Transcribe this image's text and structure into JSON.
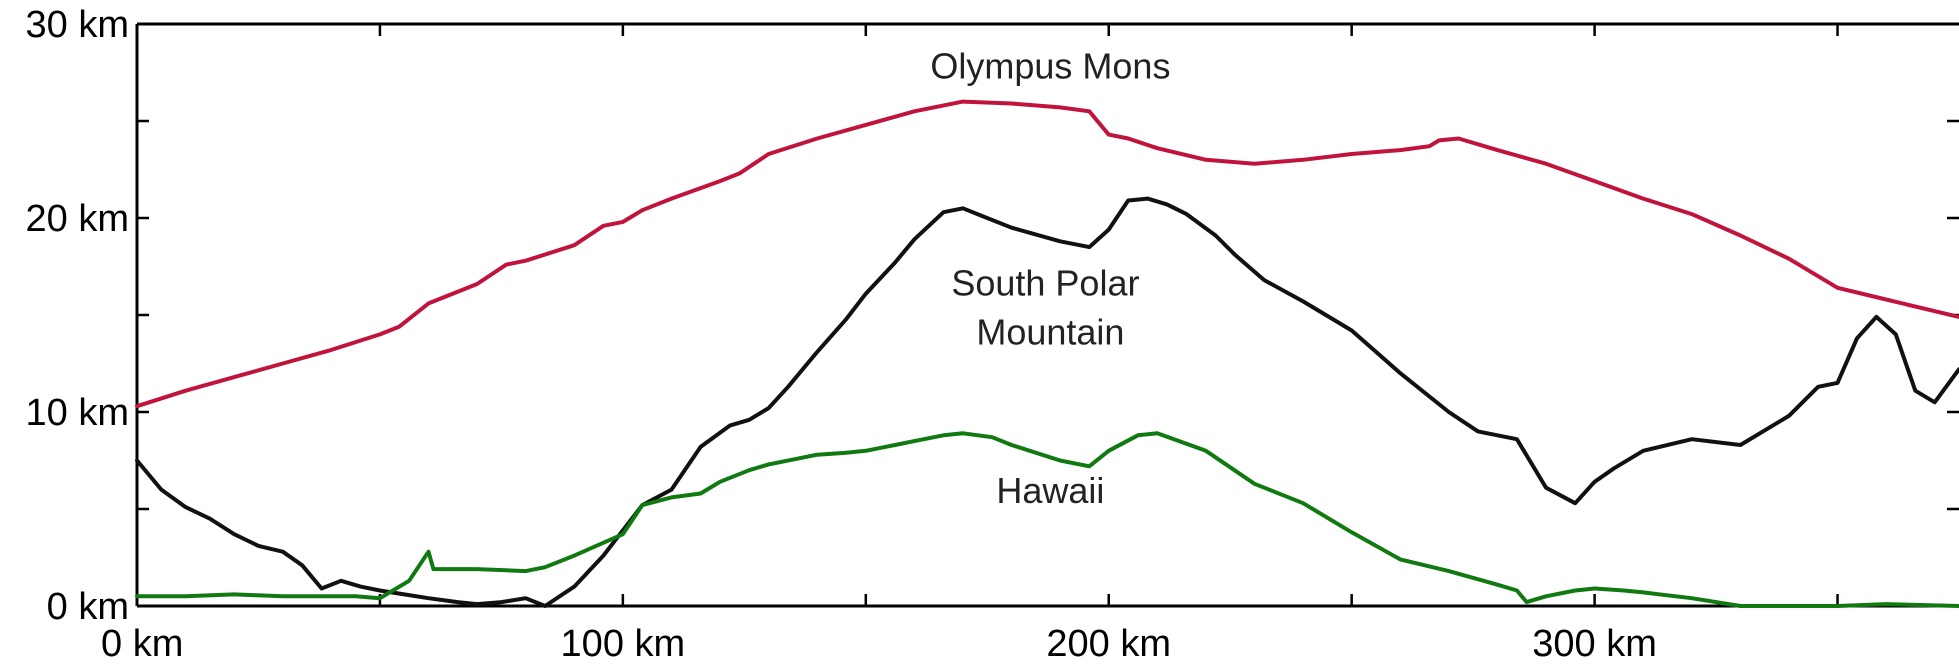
{
  "chart_data": {
    "type": "line",
    "title": "",
    "xlabel": "",
    "ylabel": "",
    "xlim": [
      0,
      375
    ],
    "ylim": [
      0,
      30
    ],
    "grid": false,
    "legend": "none",
    "x_ticks": [
      {
        "value": 0,
        "label": "0 km"
      },
      {
        "value": 100,
        "label": "100 km"
      },
      {
        "value": 200,
        "label": "200 km"
      },
      {
        "value": 300,
        "label": "300 km"
      }
    ],
    "x_minor_ticks": [
      50,
      150,
      250,
      350
    ],
    "y_ticks": [
      {
        "value": 0,
        "label": "0 km"
      },
      {
        "value": 10,
        "label": "10 km"
      },
      {
        "value": 20,
        "label": "20 km"
      },
      {
        "value": 30,
        "label": "30 km"
      }
    ],
    "y_minor_ticks": [
      5,
      15,
      25
    ],
    "series": [
      {
        "key": "olympus",
        "name": "Olympus Mons",
        "color": "#c0143c",
        "label_at": {
          "x": 188,
          "y": 27.2
        },
        "label_lines": [
          "Olympus Mons"
        ],
        "x": [
          0,
          10,
          20,
          30,
          40,
          50,
          54,
          60,
          70,
          76,
          80,
          90,
          96,
          100,
          104,
          110,
          120,
          124,
          130,
          140,
          150,
          160,
          170,
          180,
          190,
          196,
          200,
          204,
          210,
          220,
          230,
          240,
          250,
          260,
          266,
          268,
          272,
          280,
          290,
          300,
          310,
          320,
          330,
          340,
          350,
          360,
          375
        ],
        "y": [
          10.3,
          11.1,
          11.8,
          12.5,
          13.2,
          14.0,
          14.4,
          15.6,
          16.6,
          17.6,
          17.8,
          18.6,
          19.6,
          19.8,
          20.4,
          21.0,
          21.9,
          22.3,
          23.3,
          24.1,
          24.8,
          25.5,
          26.0,
          25.9,
          25.7,
          25.5,
          24.3,
          24.1,
          23.6,
          23.0,
          22.8,
          23.0,
          23.3,
          23.5,
          23.7,
          24.0,
          24.1,
          23.5,
          22.8,
          21.9,
          21.0,
          20.2,
          19.1,
          17.9,
          16.4,
          15.8,
          14.9
        ]
      },
      {
        "key": "south-polar",
        "name": "South Polar Mountain",
        "color": "#111111",
        "label_at": {
          "x": 188,
          "y": 16.0
        },
        "label_lines": [
          "South Polar",
          "Mountain"
        ],
        "x": [
          0,
          5,
          10,
          15,
          20,
          25,
          30,
          34,
          38,
          42,
          46,
          50,
          55,
          60,
          66,
          70,
          75,
          80,
          84,
          90,
          96,
          100,
          104,
          110,
          116,
          122,
          126,
          130,
          134,
          140,
          146,
          150,
          156,
          160,
          166,
          170,
          174,
          180,
          190,
          196,
          200,
          204,
          208,
          212,
          216,
          222,
          226,
          232,
          240,
          250,
          260,
          270,
          276,
          280,
          284,
          290,
          296,
          300,
          304,
          310,
          320,
          330,
          340,
          346,
          350,
          354,
          358,
          362,
          366,
          370,
          375
        ],
        "y": [
          7.5,
          6.0,
          5.1,
          4.5,
          3.7,
          3.1,
          2.8,
          2.1,
          0.9,
          1.3,
          1.0,
          0.8,
          0.6,
          0.4,
          0.2,
          0.1,
          0.2,
          0.4,
          0.0,
          1.0,
          2.6,
          3.9,
          5.2,
          6.0,
          8.2,
          9.3,
          9.6,
          10.2,
          11.3,
          13.1,
          14.8,
          16.1,
          17.7,
          18.9,
          20.3,
          20.5,
          20.1,
          19.5,
          18.8,
          18.5,
          19.4,
          20.9,
          21.0,
          20.7,
          20.2,
          19.1,
          18.1,
          16.8,
          15.7,
          14.2,
          12.0,
          10.0,
          9.0,
          8.8,
          8.6,
          6.1,
          5.3,
          6.4,
          7.1,
          8.0,
          8.6,
          8.3,
          9.8,
          11.3,
          11.5,
          13.8,
          14.9,
          14.0,
          11.1,
          10.5,
          12.2
        ]
      },
      {
        "key": "hawaii",
        "name": "Hawaii",
        "color": "#107a10",
        "label_at": {
          "x": 188,
          "y": 5.3
        },
        "label_lines": [
          "Hawaii"
        ],
        "x": [
          0,
          10,
          20,
          30,
          40,
          45,
          50,
          56,
          60,
          61,
          70,
          80,
          84,
          90,
          100,
          104,
          110,
          116,
          120,
          126,
          130,
          140,
          146,
          150,
          156,
          160,
          166,
          170,
          176,
          180,
          190,
          196,
          200,
          206,
          210,
          220,
          230,
          240,
          250,
          260,
          270,
          280,
          284,
          286,
          290,
          296,
          300,
          306,
          310,
          320,
          330,
          340,
          350,
          360,
          375
        ],
        "y": [
          0.5,
          0.5,
          0.6,
          0.5,
          0.5,
          0.5,
          0.4,
          1.3,
          2.8,
          1.9,
          1.9,
          1.8,
          2.0,
          2.6,
          3.7,
          5.2,
          5.6,
          5.8,
          6.4,
          7.0,
          7.3,
          7.8,
          7.9,
          8.0,
          8.3,
          8.5,
          8.8,
          8.9,
          8.7,
          8.3,
          7.5,
          7.2,
          8.0,
          8.8,
          8.9,
          8.0,
          6.3,
          5.3,
          3.8,
          2.4,
          1.8,
          1.1,
          0.8,
          0.2,
          0.5,
          0.8,
          0.9,
          0.8,
          0.7,
          0.4,
          0.0,
          0.0,
          0.0,
          0.1,
          0.0
        ]
      }
    ]
  }
}
